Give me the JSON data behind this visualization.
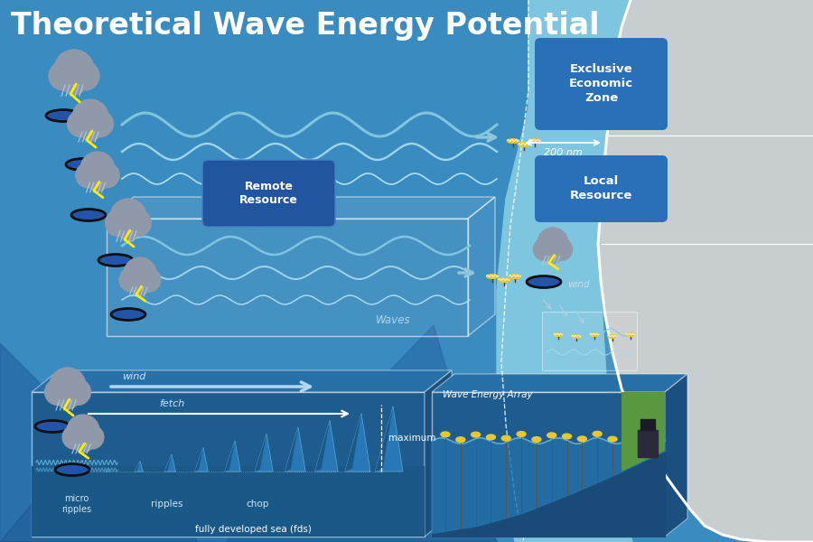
{
  "title": "Theoretical Wave Energy Potential",
  "title_color": "#FFFFFF",
  "title_fontsize": 24,
  "title_fontweight": "bold",
  "bg_color": "#3a8bbf",
  "ocean_mid": "#5aadd4",
  "ocean_light": "#7ec5e0",
  "land_color": "#c8cdd0",
  "land_border": "#ffffff",
  "label_remote": "Remote\nResource",
  "label_local": "Local\nResource",
  "label_eez": "Exclusive\nEconomic\nZone",
  "label_200nm": "200 nm",
  "label_waves": "Waves",
  "label_wind": "wind",
  "label_fetch": "fetch",
  "label_micro_ripples": "micro\nripples",
  "label_ripples": "ripples",
  "label_chop": "chop",
  "label_maximum": "maximum",
  "label_fds": "fully developed sea (fds)",
  "label_wave_energy_array": "Wave Energy Array",
  "wave_color_1": "#7abcd8",
  "wave_color_2": "#9fd0e8",
  "wave_color_3": "#b8e0f0",
  "arrow_color": "#8abcce",
  "buoy_color": "#e8c830",
  "remote_box_color": "#2a60a0",
  "local_box_color": "#2a60a0",
  "eez_text_color": "#ffffff",
  "bottom_box_color": "#1e5c8a",
  "dark_ocean": "#1e5a88"
}
